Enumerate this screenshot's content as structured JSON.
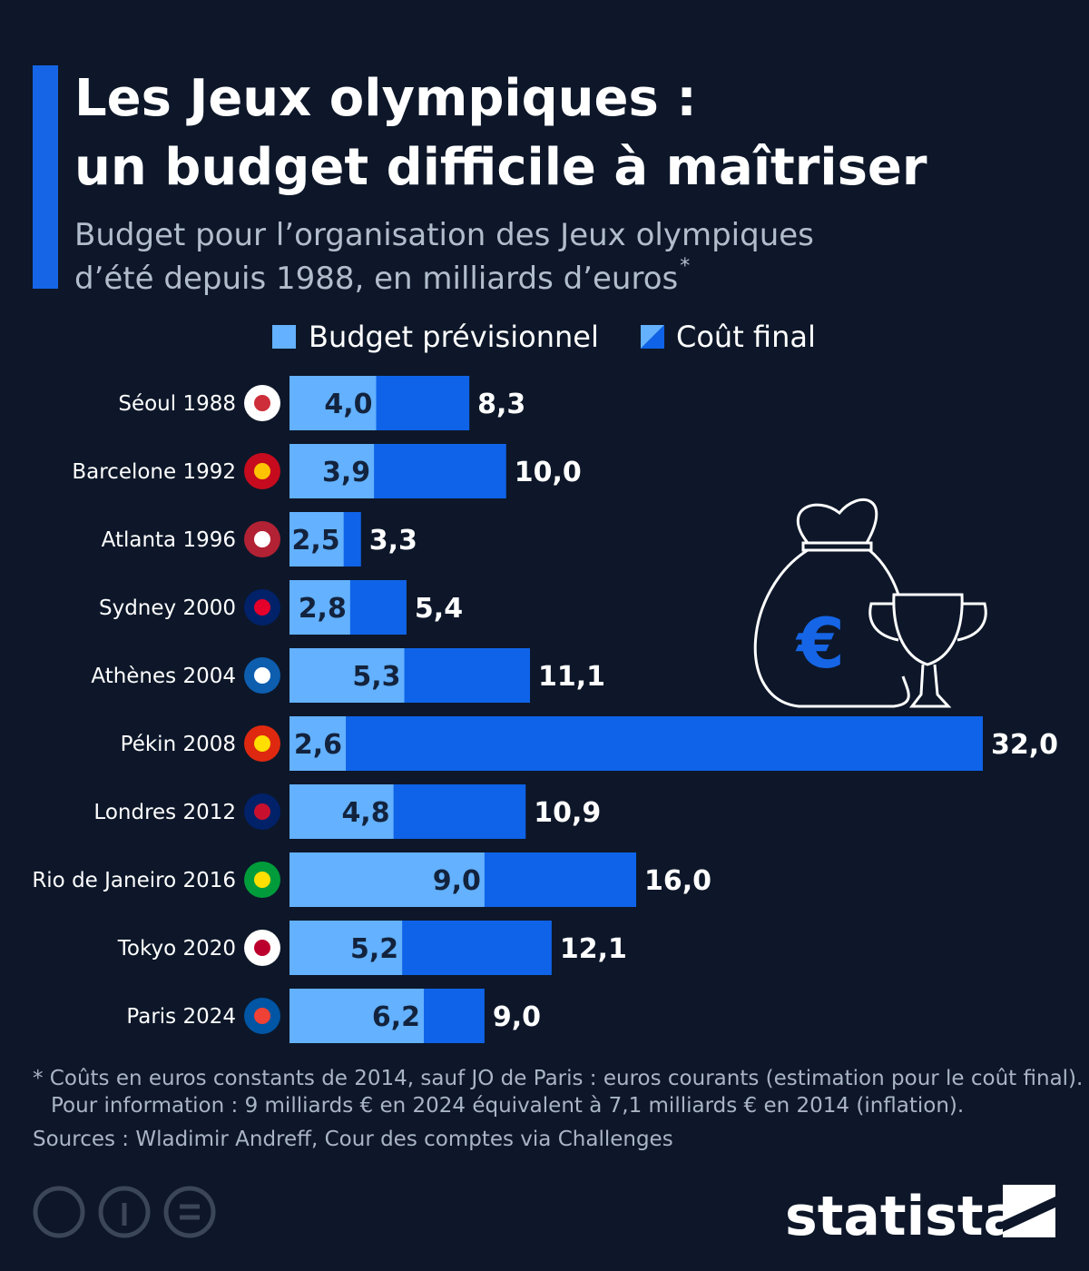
{
  "chart_data": {
    "type": "overlap-bar",
    "title": [
      "Les Jeux olympiques :",
      "un budget difficile à maîtriser"
    ],
    "subtitle": [
      "Budget pour l’organisation des Jeux olympiques",
      "d’été depuis 1988, en milliards d’euros"
    ],
    "subtitle_mark": "*",
    "categories": [
      "Séoul 1988",
      "Barcelone 1992",
      "Atlanta 1996",
      "Sydney 2000",
      "Athènes 2004",
      "Pékin 2008",
      "Londres 2012",
      "Rio de Janeiro 2016",
      "Tokyo 2020",
      "Paris 2024"
    ],
    "series": [
      {
        "name": "Budget prévisionnel",
        "color": "#63b1ff",
        "values": [
          4.0,
          3.9,
          2.5,
          2.8,
          5.3,
          2.6,
          4.8,
          9.0,
          5.2,
          6.2
        ],
        "value_labels": [
          "4,0",
          "3,9",
          "2,5",
          "2,8",
          "5,3",
          "2,6",
          "4,8",
          "9,0",
          "5,2",
          "6,2"
        ]
      },
      {
        "name": "Coût final",
        "color": "#0f63e8",
        "values": [
          8.3,
          10.0,
          3.3,
          5.4,
          11.1,
          32.0,
          10.9,
          16.0,
          12.1,
          9.0
        ],
        "value_labels": [
          "8,3",
          "10,0",
          "3,3",
          "5,4",
          "11,1",
          "32,0",
          "10,9",
          "16,0",
          "12,1",
          "9,0"
        ]
      }
    ],
    "notes": [
      "* Coûts en euros constants de 2014, sauf JO de Paris : euros courants (estimation pour le coût final).",
      "Pour information : 9 milliards € en 2024 équivalent à 7,1 milliards € en 2014 (inflation)."
    ],
    "source": "Sources : Wladimir Andreff, Cour des comptes via Challenges",
    "brand": "statista"
  }
}
